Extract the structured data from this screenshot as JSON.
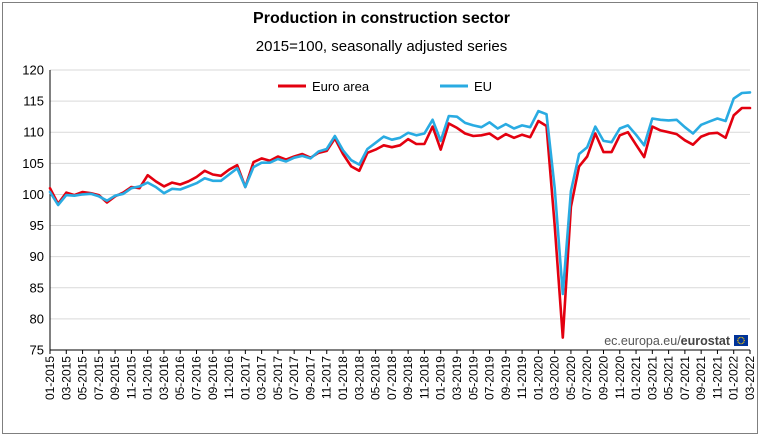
{
  "chart_data": {
    "type": "line",
    "title": "Production in construction sector",
    "subtitle": "2015=100, seasonally adjusted series",
    "ylim": [
      75,
      120
    ],
    "yticks": [
      75,
      80,
      85,
      90,
      95,
      100,
      105,
      110,
      115,
      120
    ],
    "grid": "horizontal",
    "legend_position": "top-center",
    "source": "ec.europa.eu/eurostat",
    "source_prefix": "ec.europa.eu/",
    "source_brand": "eurostat",
    "x": [
      "01-2015",
      "02-2015",
      "03-2015",
      "04-2015",
      "05-2015",
      "06-2015",
      "07-2015",
      "08-2015",
      "09-2015",
      "10-2015",
      "11-2015",
      "12-2015",
      "01-2016",
      "02-2016",
      "03-2016",
      "04-2016",
      "05-2016",
      "06-2016",
      "07-2016",
      "08-2016",
      "09-2016",
      "10-2016",
      "11-2016",
      "12-2016",
      "01-2017",
      "02-2017",
      "03-2017",
      "04-2017",
      "05-2017",
      "06-2017",
      "07-2017",
      "08-2017",
      "09-2017",
      "10-2017",
      "11-2017",
      "12-2017",
      "01-2018",
      "02-2018",
      "03-2018",
      "04-2018",
      "05-2018",
      "06-2018",
      "07-2018",
      "08-2018",
      "09-2018",
      "10-2018",
      "11-2018",
      "12-2018",
      "01-2019",
      "02-2019",
      "03-2019",
      "04-2019",
      "05-2019",
      "06-2019",
      "07-2019",
      "08-2019",
      "09-2019",
      "10-2019",
      "11-2019",
      "12-2019",
      "01-2020",
      "02-2020",
      "03-2020",
      "04-2020",
      "05-2020",
      "06-2020",
      "07-2020",
      "08-2020",
      "09-2020",
      "10-2020",
      "11-2020",
      "12-2020",
      "01-2021",
      "02-2021",
      "03-2021",
      "04-2021",
      "05-2021",
      "06-2021",
      "07-2021",
      "08-2021",
      "09-2021",
      "10-2021",
      "11-2021",
      "12-2021",
      "01-2022",
      "02-2022",
      "03-2022"
    ],
    "xtick_labels": [
      "01-2015",
      "03-2015",
      "05-2015",
      "07-2015",
      "09-2015",
      "11-2015",
      "01-2016",
      "03-2016",
      "05-2016",
      "07-2016",
      "09-2016",
      "11-2016",
      "01-2017",
      "03-2017",
      "05-2017",
      "07-2017",
      "09-2017",
      "11-2017",
      "01-2018",
      "03-2018",
      "05-2018",
      "07-2018",
      "09-2018",
      "11-2018",
      "01-2019",
      "03-2019",
      "05-2019",
      "07-2019",
      "09-2019",
      "11-2019",
      "01-2020",
      "03-2020",
      "05-2020",
      "07-2020",
      "09-2020",
      "11-2020",
      "01-2021",
      "03-2021",
      "05-2021",
      "07-2021",
      "09-2021",
      "11-2021",
      "01-2022",
      "03-2022"
    ],
    "series": [
      {
        "name": "Euro area",
        "color": "#e3000f",
        "values": [
          101.0,
          98.5,
          100.3,
          99.9,
          100.4,
          100.2,
          99.9,
          98.7,
          99.7,
          100.3,
          101.2,
          101.0,
          103.1,
          102.1,
          101.3,
          101.9,
          101.6,
          102.1,
          102.8,
          103.8,
          103.2,
          103.0,
          104.0,
          104.7,
          101.2,
          105.2,
          105.8,
          105.4,
          106.1,
          105.6,
          106.1,
          106.5,
          105.9,
          106.7,
          107.0,
          109.0,
          106.5,
          104.5,
          103.8,
          106.7,
          107.2,
          107.9,
          107.6,
          107.9,
          108.9,
          108.1,
          108.1,
          110.9,
          107.2,
          111.4,
          110.7,
          109.8,
          109.4,
          109.5,
          109.8,
          108.9,
          109.7,
          109.1,
          109.6,
          109.2,
          111.8,
          111.0,
          95.0,
          77.0,
          98.0,
          104.5,
          106.1,
          109.8,
          106.8,
          106.8,
          109.5,
          110.0,
          108.0,
          106.0,
          110.9,
          110.3,
          110.0,
          109.7,
          108.7,
          108.0,
          109.3,
          109.8,
          109.9,
          109.1,
          112.7,
          113.9,
          113.9
        ]
      },
      {
        "name": "EU",
        "color": "#29abe2",
        "values": [
          100.4,
          98.3,
          99.9,
          99.8,
          100.0,
          100.1,
          99.7,
          99.0,
          99.8,
          100.1,
          101.0,
          101.3,
          101.9,
          101.2,
          100.2,
          100.9,
          100.8,
          101.3,
          101.8,
          102.6,
          102.2,
          102.2,
          103.2,
          104.2,
          101.2,
          104.4,
          105.1,
          105.1,
          105.7,
          105.3,
          105.9,
          106.2,
          105.8,
          106.9,
          107.3,
          109.4,
          107.1,
          105.5,
          104.8,
          107.3,
          108.3,
          109.3,
          108.8,
          109.1,
          109.9,
          109.5,
          109.8,
          112.0,
          108.6,
          112.6,
          112.5,
          111.5,
          111.1,
          110.8,
          111.6,
          110.6,
          111.3,
          110.6,
          111.1,
          110.8,
          113.4,
          112.9,
          101.0,
          84.0,
          100.5,
          106.5,
          107.6,
          110.9,
          108.6,
          108.4,
          110.6,
          111.1,
          109.6,
          107.9,
          112.2,
          112.0,
          111.9,
          112.0,
          110.8,
          109.8,
          111.2,
          111.7,
          112.2,
          111.8,
          115.4,
          116.3,
          116.4
        ]
      }
    ]
  }
}
